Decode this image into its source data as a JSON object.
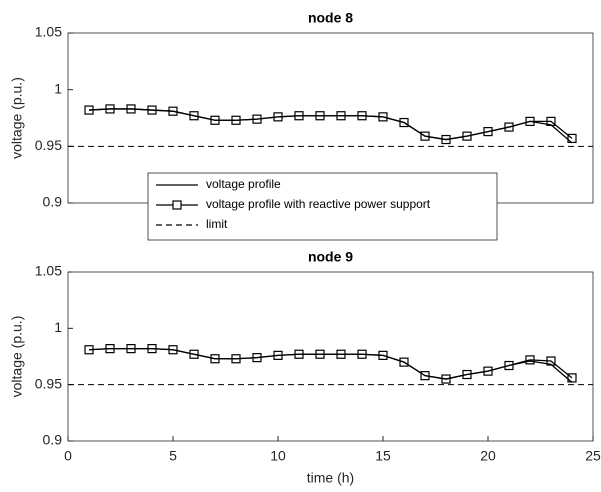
{
  "chart_data": [
    {
      "type": "line",
      "title": "node 8",
      "y_label": "voltage (p.u.)",
      "x": [
        1,
        2,
        3,
        4,
        5,
        6,
        7,
        8,
        9,
        10,
        11,
        12,
        13,
        14,
        15,
        16,
        17,
        18,
        19,
        20,
        21,
        22,
        23,
        24
      ],
      "series": [
        {
          "name": "voltage profile",
          "color": "#000000",
          "marker": "none",
          "values": [
            0.982,
            0.983,
            0.983,
            0.982,
            0.981,
            0.977,
            0.973,
            0.973,
            0.974,
            0.976,
            0.977,
            0.977,
            0.977,
            0.977,
            0.976,
            0.971,
            0.959,
            0.956,
            0.959,
            0.963,
            0.967,
            0.972,
            0.969,
            0.953
          ]
        },
        {
          "name": "voltage profile with reactive power support",
          "color": "#000000",
          "marker": "square",
          "values": [
            0.982,
            0.983,
            0.983,
            0.982,
            0.981,
            0.977,
            0.973,
            0.973,
            0.974,
            0.976,
            0.977,
            0.977,
            0.977,
            0.977,
            0.976,
            0.971,
            0.959,
            0.956,
            0.959,
            0.963,
            0.967,
            0.972,
            0.972,
            0.957
          ]
        }
      ],
      "limit": {
        "name": "limit",
        "value": 0.95,
        "style": "dashed",
        "color": "#000000"
      },
      "xlim": [
        0,
        25
      ],
      "ylim": [
        0.9,
        1.05
      ],
      "yticks": [
        0.9,
        0.95,
        1,
        1.05
      ],
      "grid": false,
      "legend": "lower left"
    },
    {
      "type": "line",
      "title": "node 9",
      "x_label": "time (h)",
      "y_label": "voltage (p.u.)",
      "x": [
        1,
        2,
        3,
        4,
        5,
        6,
        7,
        8,
        9,
        10,
        11,
        12,
        13,
        14,
        15,
        16,
        17,
        18,
        19,
        20,
        21,
        22,
        23,
        24
      ],
      "series": [
        {
          "color": "#000000",
          "marker": "none",
          "values": [
            0.981,
            0.982,
            0.982,
            0.982,
            0.981,
            0.977,
            0.973,
            0.973,
            0.974,
            0.976,
            0.977,
            0.977,
            0.977,
            0.977,
            0.976,
            0.97,
            0.958,
            0.955,
            0.959,
            0.962,
            0.967,
            0.971,
            0.968,
            0.952
          ]
        },
        {
          "color": "#000000",
          "marker": "square",
          "values": [
            0.981,
            0.982,
            0.982,
            0.982,
            0.981,
            0.977,
            0.973,
            0.973,
            0.974,
            0.976,
            0.977,
            0.977,
            0.977,
            0.977,
            0.976,
            0.97,
            0.958,
            0.955,
            0.959,
            0.962,
            0.967,
            0.972,
            0.971,
            0.956
          ]
        }
      ],
      "limit": {
        "value": 0.95,
        "style": "dashed",
        "color": "#000000"
      },
      "xlim": [
        0,
        25
      ],
      "ylim": [
        0.9,
        1.05
      ],
      "xticks": [
        0,
        5,
        10,
        15,
        20,
        25
      ],
      "yticks": [
        0.9,
        0.95,
        1,
        1.05
      ],
      "grid": false
    }
  ]
}
